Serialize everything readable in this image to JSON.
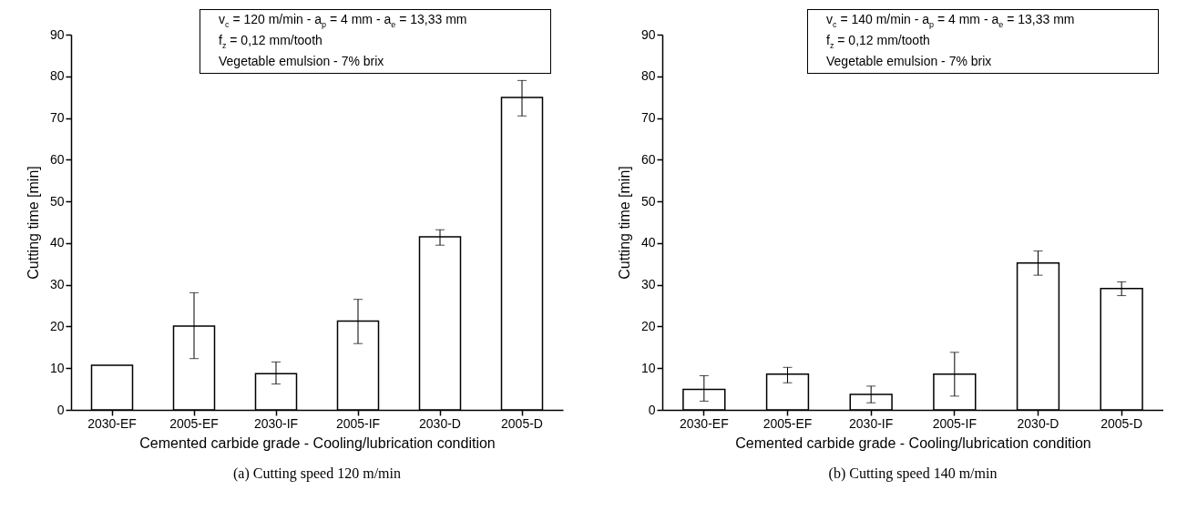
{
  "chart_data": [
    {
      "type": "bar",
      "title": "(a) Cutting speed 120 m/min",
      "xlabel": "Cemented carbide grade - Cooling/lubrication condition",
      "ylabel": "Cutting time [min]",
      "categories": [
        "2030-EF",
        "2005-EF",
        "2030-IF",
        "2005-IF",
        "2030-D",
        "2005-D"
      ],
      "values": [
        10.7,
        20.1,
        8.7,
        21.3,
        41.5,
        74.9
      ],
      "errors": [
        null,
        [
          12.3,
          28.1
        ],
        [
          6.2,
          11.5
        ],
        [
          15.9,
          26.5
        ],
        [
          39.5,
          43.2
        ],
        [
          70.5,
          79.0
        ]
      ],
      "color": "#ffffff",
      "ylim": [
        0,
        90
      ],
      "yticks": [
        0,
        10,
        20,
        30,
        40,
        50,
        60,
        70,
        80,
        90
      ],
      "annotations": [
        "v$_{c}$ = 120 m/min - a$_{p}$ = 4 mm - a$_{e}$ = 13,33 mm",
        "f$_{z}$ = 0,12 mm/tooth",
        "Vegetable emulsion - 7% brix"
      ]
    },
    {
      "type": "bar",
      "title": "(b) Cutting speed 140 m/min",
      "xlabel": "Cemented carbide grade - Cooling/lubrication condition",
      "ylabel": "Cutting time [min]",
      "categories": [
        "2030-EF",
        "2005-EF",
        "2030-IF",
        "2005-IF",
        "2030-D",
        "2005-D"
      ],
      "values": [
        4.9,
        8.6,
        3.7,
        8.6,
        35.2,
        29.1
      ],
      "errors": [
        [
          2.1,
          8.2
        ],
        [
          6.5,
          10.2
        ],
        [
          1.7,
          5.7
        ],
        [
          3.3,
          13.8
        ],
        [
          32.3,
          38.1
        ],
        [
          27.4,
          30.7
        ]
      ],
      "color": "#ffffff",
      "ylim": [
        0,
        90
      ],
      "yticks": [
        0,
        10,
        20,
        30,
        40,
        50,
        60,
        70,
        80,
        90
      ],
      "annotations": [
        "v$_{c}$ = 140 m/min - a$_{p}$ = 4 mm - a$_{e}$ = 13,33 mm",
        "f$_{z}$ = 0,12 mm/tooth",
        "Vegetable emulsion - 7% brix"
      ]
    }
  ]
}
